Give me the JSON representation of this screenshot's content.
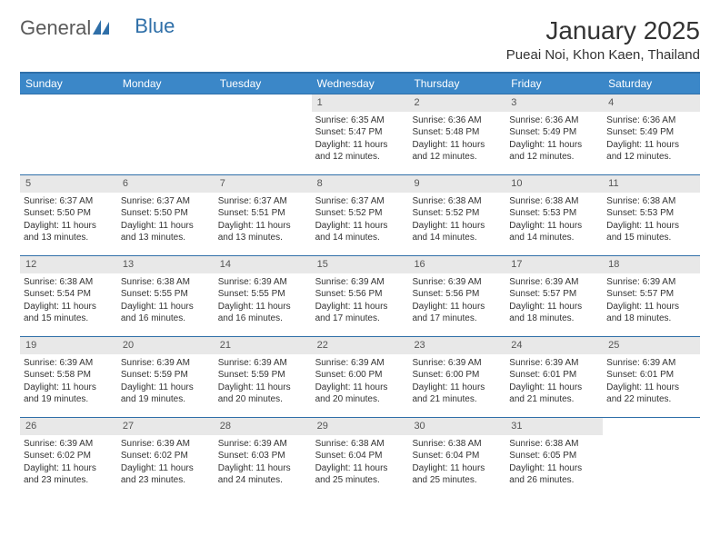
{
  "logo": {
    "text1": "General",
    "text2": "Blue"
  },
  "title": "January 2025",
  "location": "Pueai Noi, Khon Kaen, Thailand",
  "colors": {
    "header_bg": "#3b87c8",
    "border": "#2f6fa8",
    "daynum_bg": "#e8e8e8",
    "text": "#333333"
  },
  "weekdays": [
    "Sunday",
    "Monday",
    "Tuesday",
    "Wednesday",
    "Thursday",
    "Friday",
    "Saturday"
  ],
  "weeks": [
    [
      {
        "empty": true
      },
      {
        "empty": true
      },
      {
        "empty": true
      },
      {
        "num": "1",
        "sunrise": "Sunrise: 6:35 AM",
        "sunset": "Sunset: 5:47 PM",
        "daylight1": "Daylight: 11 hours",
        "daylight2": "and 12 minutes."
      },
      {
        "num": "2",
        "sunrise": "Sunrise: 6:36 AM",
        "sunset": "Sunset: 5:48 PM",
        "daylight1": "Daylight: 11 hours",
        "daylight2": "and 12 minutes."
      },
      {
        "num": "3",
        "sunrise": "Sunrise: 6:36 AM",
        "sunset": "Sunset: 5:49 PM",
        "daylight1": "Daylight: 11 hours",
        "daylight2": "and 12 minutes."
      },
      {
        "num": "4",
        "sunrise": "Sunrise: 6:36 AM",
        "sunset": "Sunset: 5:49 PM",
        "daylight1": "Daylight: 11 hours",
        "daylight2": "and 12 minutes."
      }
    ],
    [
      {
        "num": "5",
        "sunrise": "Sunrise: 6:37 AM",
        "sunset": "Sunset: 5:50 PM",
        "daylight1": "Daylight: 11 hours",
        "daylight2": "and 13 minutes."
      },
      {
        "num": "6",
        "sunrise": "Sunrise: 6:37 AM",
        "sunset": "Sunset: 5:50 PM",
        "daylight1": "Daylight: 11 hours",
        "daylight2": "and 13 minutes."
      },
      {
        "num": "7",
        "sunrise": "Sunrise: 6:37 AM",
        "sunset": "Sunset: 5:51 PM",
        "daylight1": "Daylight: 11 hours",
        "daylight2": "and 13 minutes."
      },
      {
        "num": "8",
        "sunrise": "Sunrise: 6:37 AM",
        "sunset": "Sunset: 5:52 PM",
        "daylight1": "Daylight: 11 hours",
        "daylight2": "and 14 minutes."
      },
      {
        "num": "9",
        "sunrise": "Sunrise: 6:38 AM",
        "sunset": "Sunset: 5:52 PM",
        "daylight1": "Daylight: 11 hours",
        "daylight2": "and 14 minutes."
      },
      {
        "num": "10",
        "sunrise": "Sunrise: 6:38 AM",
        "sunset": "Sunset: 5:53 PM",
        "daylight1": "Daylight: 11 hours",
        "daylight2": "and 14 minutes."
      },
      {
        "num": "11",
        "sunrise": "Sunrise: 6:38 AM",
        "sunset": "Sunset: 5:53 PM",
        "daylight1": "Daylight: 11 hours",
        "daylight2": "and 15 minutes."
      }
    ],
    [
      {
        "num": "12",
        "sunrise": "Sunrise: 6:38 AM",
        "sunset": "Sunset: 5:54 PM",
        "daylight1": "Daylight: 11 hours",
        "daylight2": "and 15 minutes."
      },
      {
        "num": "13",
        "sunrise": "Sunrise: 6:38 AM",
        "sunset": "Sunset: 5:55 PM",
        "daylight1": "Daylight: 11 hours",
        "daylight2": "and 16 minutes."
      },
      {
        "num": "14",
        "sunrise": "Sunrise: 6:39 AM",
        "sunset": "Sunset: 5:55 PM",
        "daylight1": "Daylight: 11 hours",
        "daylight2": "and 16 minutes."
      },
      {
        "num": "15",
        "sunrise": "Sunrise: 6:39 AM",
        "sunset": "Sunset: 5:56 PM",
        "daylight1": "Daylight: 11 hours",
        "daylight2": "and 17 minutes."
      },
      {
        "num": "16",
        "sunrise": "Sunrise: 6:39 AM",
        "sunset": "Sunset: 5:56 PM",
        "daylight1": "Daylight: 11 hours",
        "daylight2": "and 17 minutes."
      },
      {
        "num": "17",
        "sunrise": "Sunrise: 6:39 AM",
        "sunset": "Sunset: 5:57 PM",
        "daylight1": "Daylight: 11 hours",
        "daylight2": "and 18 minutes."
      },
      {
        "num": "18",
        "sunrise": "Sunrise: 6:39 AM",
        "sunset": "Sunset: 5:57 PM",
        "daylight1": "Daylight: 11 hours",
        "daylight2": "and 18 minutes."
      }
    ],
    [
      {
        "num": "19",
        "sunrise": "Sunrise: 6:39 AM",
        "sunset": "Sunset: 5:58 PM",
        "daylight1": "Daylight: 11 hours",
        "daylight2": "and 19 minutes."
      },
      {
        "num": "20",
        "sunrise": "Sunrise: 6:39 AM",
        "sunset": "Sunset: 5:59 PM",
        "daylight1": "Daylight: 11 hours",
        "daylight2": "and 19 minutes."
      },
      {
        "num": "21",
        "sunrise": "Sunrise: 6:39 AM",
        "sunset": "Sunset: 5:59 PM",
        "daylight1": "Daylight: 11 hours",
        "daylight2": "and 20 minutes."
      },
      {
        "num": "22",
        "sunrise": "Sunrise: 6:39 AM",
        "sunset": "Sunset: 6:00 PM",
        "daylight1": "Daylight: 11 hours",
        "daylight2": "and 20 minutes."
      },
      {
        "num": "23",
        "sunrise": "Sunrise: 6:39 AM",
        "sunset": "Sunset: 6:00 PM",
        "daylight1": "Daylight: 11 hours",
        "daylight2": "and 21 minutes."
      },
      {
        "num": "24",
        "sunrise": "Sunrise: 6:39 AM",
        "sunset": "Sunset: 6:01 PM",
        "daylight1": "Daylight: 11 hours",
        "daylight2": "and 21 minutes."
      },
      {
        "num": "25",
        "sunrise": "Sunrise: 6:39 AM",
        "sunset": "Sunset: 6:01 PM",
        "daylight1": "Daylight: 11 hours",
        "daylight2": "and 22 minutes."
      }
    ],
    [
      {
        "num": "26",
        "sunrise": "Sunrise: 6:39 AM",
        "sunset": "Sunset: 6:02 PM",
        "daylight1": "Daylight: 11 hours",
        "daylight2": "and 23 minutes."
      },
      {
        "num": "27",
        "sunrise": "Sunrise: 6:39 AM",
        "sunset": "Sunset: 6:02 PM",
        "daylight1": "Daylight: 11 hours",
        "daylight2": "and 23 minutes."
      },
      {
        "num": "28",
        "sunrise": "Sunrise: 6:39 AM",
        "sunset": "Sunset: 6:03 PM",
        "daylight1": "Daylight: 11 hours",
        "daylight2": "and 24 minutes."
      },
      {
        "num": "29",
        "sunrise": "Sunrise: 6:38 AM",
        "sunset": "Sunset: 6:04 PM",
        "daylight1": "Daylight: 11 hours",
        "daylight2": "and 25 minutes."
      },
      {
        "num": "30",
        "sunrise": "Sunrise: 6:38 AM",
        "sunset": "Sunset: 6:04 PM",
        "daylight1": "Daylight: 11 hours",
        "daylight2": "and 25 minutes."
      },
      {
        "num": "31",
        "sunrise": "Sunrise: 6:38 AM",
        "sunset": "Sunset: 6:05 PM",
        "daylight1": "Daylight: 11 hours",
        "daylight2": "and 26 minutes."
      },
      {
        "empty": true
      }
    ]
  ]
}
